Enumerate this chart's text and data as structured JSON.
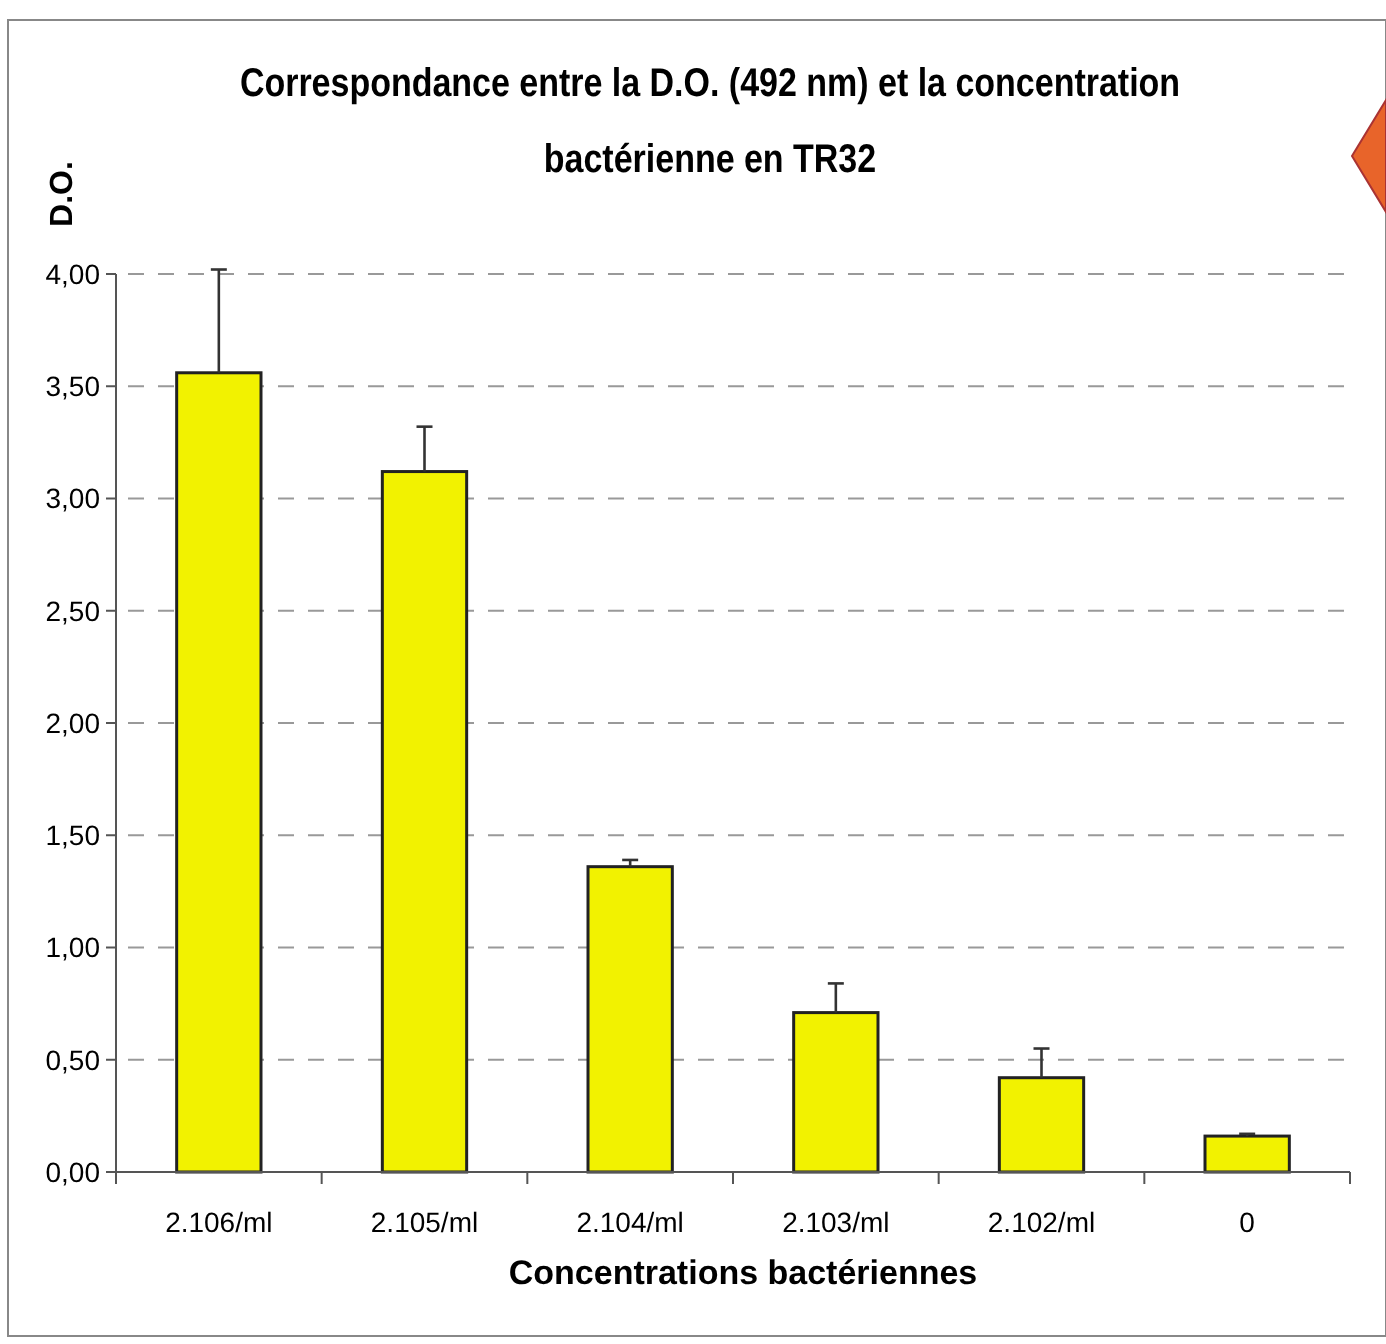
{
  "chart_data": {
    "type": "bar",
    "title": "Correspondance entre la D.O. (492 nm) et la concentration\nbactérienne en TR32",
    "xlabel": "Concentrations bactériennes",
    "ylabel": "D.O.",
    "categories": [
      "2.106/ml",
      "2.105/ml",
      "2.104/ml",
      "2.103/ml",
      "2.102/ml",
      "0"
    ],
    "values": [
      3.56,
      3.12,
      1.36,
      0.71,
      0.42,
      0.16
    ],
    "errors": [
      [
        3.56,
        4.02
      ],
      [
        3.12,
        3.32
      ],
      [
        1.36,
        1.39
      ],
      [
        0.71,
        0.84
      ],
      [
        0.42,
        0.55
      ],
      [
        0.16,
        0.17
      ]
    ],
    "color": "#f2f200",
    "ylim": [
      0,
      4
    ],
    "yticks": [
      {
        "value": 0,
        "label": "0,00"
      },
      {
        "value": 0.5,
        "label": "0,50"
      },
      {
        "value": 1,
        "label": "1,00"
      },
      {
        "value": 1.5,
        "label": "1,50"
      },
      {
        "value": 2,
        "label": "2,00"
      },
      {
        "value": 2.5,
        "label": "2,50"
      },
      {
        "value": 3,
        "label": "3,00"
      },
      {
        "value": 3.5,
        "label": "3,50"
      },
      {
        "value": 4,
        "label": "4,00"
      }
    ],
    "grid": "y"
  }
}
